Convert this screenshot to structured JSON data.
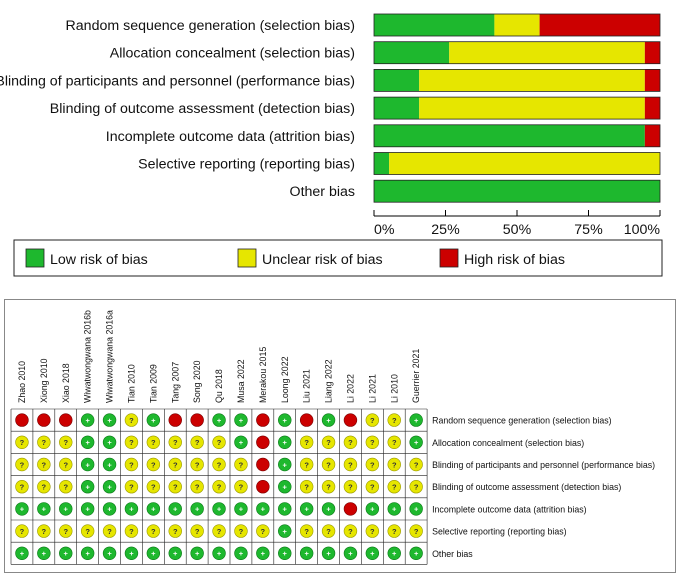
{
  "colors": {
    "low": "#1eb82e",
    "unclear": "#e6e600",
    "high": "#cc0000"
  },
  "legend": {
    "low": "Low risk of bias",
    "unclear": "Unclear risk of bias",
    "high": "High risk of bias"
  },
  "chart_data": [
    {
      "type": "bar",
      "orientation": "horizontal-stacked-percent",
      "categories": [
        "Random sequence generation (selection bias)",
        "Allocation concealment (selection bias)",
        "Blinding of participants and personnel (performance bias)",
        "Blinding of outcome assessment (detection bias)",
        "Incomplete outcome data (attrition bias)",
        "Selective reporting (reporting bias)",
        "Other bias"
      ],
      "series": [
        {
          "name": "Low risk of bias",
          "key": "low",
          "values": [
            42.1,
            26.3,
            15.8,
            15.8,
            94.7,
            5.3,
            100
          ]
        },
        {
          "name": "Unclear risk of bias",
          "key": "unclear",
          "values": [
            15.8,
            68.4,
            78.9,
            78.9,
            0,
            94.7,
            0
          ]
        },
        {
          "name": "High risk of bias",
          "key": "high",
          "values": [
            42.1,
            5.3,
            5.3,
            5.3,
            5.3,
            0,
            0
          ]
        }
      ],
      "xticks": [
        "0%",
        "25%",
        "50%",
        "75%",
        "100%"
      ],
      "xlim": [
        0,
        100
      ]
    },
    {
      "type": "table",
      "studies": [
        "Zhao 2010",
        "Xiong 2010",
        "Xiao 2018",
        "Wiwatwongwana 2016b",
        "Wiwatwongwana 2016a",
        "Tian 2010",
        "Tian 2009",
        "Tang 2007",
        "Song 2020",
        "Qu 2018",
        "Musa 2022",
        "Merakou 2015",
        "Loong 2022",
        "Liu 2021",
        "Liang 2022",
        "Li 2022",
        "Li 2021",
        "Li 2010",
        "Guerrier 2021"
      ],
      "domains": [
        "Random sequence generation (selection bias)",
        "Allocation concealment (selection bias)",
        "Blinding of participants and personnel (performance bias)",
        "Blinding of outcome assessment (detection bias)",
        "Incomplete outcome data (attrition bias)",
        "Selective reporting (reporting bias)",
        "Other bias"
      ],
      "symbols": {
        "low": "+",
        "unclear": "?",
        "high": "−"
      },
      "judgements": [
        [
          "high",
          "high",
          "high",
          "low",
          "low",
          "unclear",
          "low",
          "high",
          "high",
          "low",
          "low",
          "high",
          "low",
          "high",
          "low",
          "high",
          "unclear",
          "unclear",
          "low"
        ],
        [
          "unclear",
          "unclear",
          "unclear",
          "low",
          "low",
          "unclear",
          "unclear",
          "unclear",
          "unclear",
          "unclear",
          "low",
          "high",
          "low",
          "unclear",
          "unclear",
          "unclear",
          "unclear",
          "unclear",
          "low"
        ],
        [
          "unclear",
          "unclear",
          "unclear",
          "low",
          "low",
          "unclear",
          "unclear",
          "unclear",
          "unclear",
          "unclear",
          "unclear",
          "high",
          "low",
          "unclear",
          "unclear",
          "unclear",
          "unclear",
          "unclear",
          "unclear"
        ],
        [
          "unclear",
          "unclear",
          "unclear",
          "low",
          "low",
          "unclear",
          "unclear",
          "unclear",
          "unclear",
          "unclear",
          "unclear",
          "high",
          "low",
          "unclear",
          "unclear",
          "unclear",
          "unclear",
          "unclear",
          "unclear"
        ],
        [
          "low",
          "low",
          "low",
          "low",
          "low",
          "low",
          "low",
          "low",
          "low",
          "low",
          "low",
          "low",
          "low",
          "low",
          "low",
          "high",
          "low",
          "low",
          "low"
        ],
        [
          "unclear",
          "unclear",
          "unclear",
          "unclear",
          "unclear",
          "unclear",
          "unclear",
          "unclear",
          "unclear",
          "unclear",
          "unclear",
          "unclear",
          "low",
          "unclear",
          "unclear",
          "unclear",
          "unclear",
          "unclear",
          "unclear"
        ],
        [
          "low",
          "low",
          "low",
          "low",
          "low",
          "low",
          "low",
          "low",
          "low",
          "low",
          "low",
          "low",
          "low",
          "low",
          "low",
          "low",
          "low",
          "low",
          "low"
        ]
      ]
    }
  ]
}
